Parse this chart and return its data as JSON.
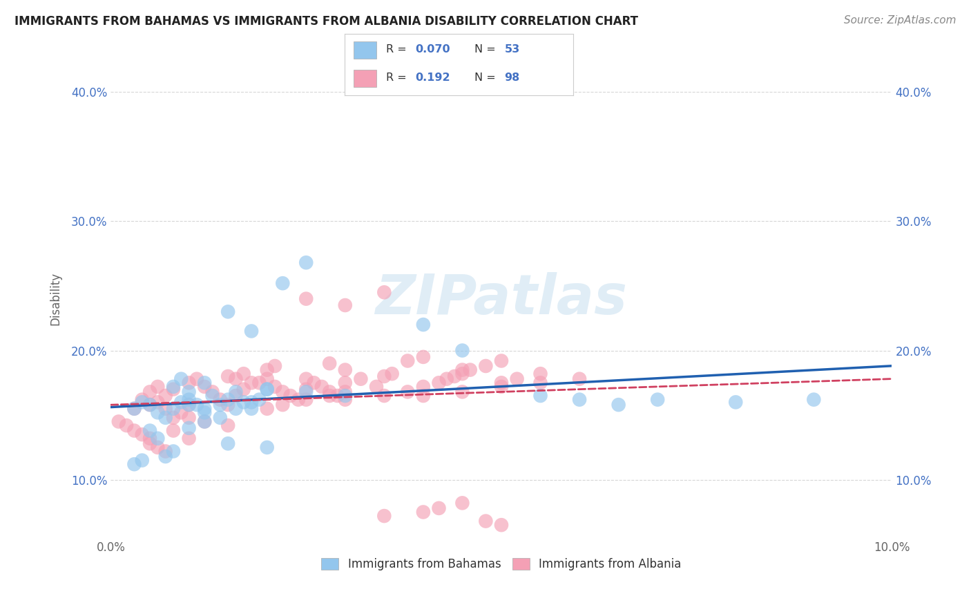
{
  "title": "IMMIGRANTS FROM BAHAMAS VS IMMIGRANTS FROM ALBANIA DISABILITY CORRELATION CHART",
  "source": "Source: ZipAtlas.com",
  "ylabel": "Disability",
  "xlim": [
    0.0,
    0.1
  ],
  "ylim": [
    0.055,
    0.425
  ],
  "y_ticks": [
    0.1,
    0.2,
    0.3,
    0.4
  ],
  "y_tick_labels": [
    "10.0%",
    "20.0%",
    "30.0%",
    "40.0%"
  ],
  "watermark": "ZIPatlas",
  "color_bahamas": "#93C6ED",
  "color_albania": "#F4A0B5",
  "color_line_bahamas": "#2060B0",
  "color_line_albania": "#D04060",
  "background_color": "#FFFFFF",
  "bahamas_x": [
    0.003,
    0.004,
    0.005,
    0.006,
    0.007,
    0.008,
    0.009,
    0.01,
    0.011,
    0.012,
    0.013,
    0.014,
    0.015,
    0.016,
    0.017,
    0.018,
    0.019,
    0.02,
    0.012,
    0.01,
    0.008,
    0.009,
    0.022,
    0.025,
    0.015,
    0.018,
    0.04,
    0.045,
    0.055,
    0.06,
    0.065,
    0.07,
    0.08,
    0.09,
    0.02,
    0.025,
    0.03,
    0.01,
    0.012,
    0.005,
    0.006,
    0.015,
    0.02,
    0.007,
    0.008,
    0.003,
    0.004,
    0.016,
    0.014,
    0.012,
    0.01,
    0.018
  ],
  "bahamas_y": [
    0.155,
    0.16,
    0.158,
    0.152,
    0.148,
    0.155,
    0.16,
    0.162,
    0.158,
    0.155,
    0.165,
    0.158,
    0.162,
    0.168,
    0.16,
    0.155,
    0.162,
    0.17,
    0.175,
    0.168,
    0.172,
    0.178,
    0.252,
    0.268,
    0.23,
    0.215,
    0.22,
    0.2,
    0.165,
    0.162,
    0.158,
    0.162,
    0.16,
    0.162,
    0.17,
    0.168,
    0.165,
    0.14,
    0.145,
    0.138,
    0.132,
    0.128,
    0.125,
    0.118,
    0.122,
    0.112,
    0.115,
    0.155,
    0.148,
    0.152,
    0.158,
    0.16
  ],
  "albania_x": [
    0.001,
    0.002,
    0.003,
    0.004,
    0.005,
    0.003,
    0.004,
    0.005,
    0.006,
    0.007,
    0.008,
    0.009,
    0.01,
    0.005,
    0.006,
    0.007,
    0.008,
    0.01,
    0.011,
    0.012,
    0.013,
    0.014,
    0.015,
    0.016,
    0.017,
    0.018,
    0.015,
    0.016,
    0.017,
    0.019,
    0.02,
    0.021,
    0.022,
    0.023,
    0.024,
    0.025,
    0.02,
    0.021,
    0.025,
    0.026,
    0.027,
    0.028,
    0.029,
    0.03,
    0.028,
    0.03,
    0.03,
    0.032,
    0.034,
    0.035,
    0.036,
    0.035,
    0.038,
    0.04,
    0.042,
    0.043,
    0.044,
    0.045,
    0.038,
    0.04,
    0.045,
    0.046,
    0.048,
    0.05,
    0.05,
    0.052,
    0.055,
    0.04,
    0.045,
    0.05,
    0.055,
    0.06,
    0.025,
    0.03,
    0.035,
    0.01,
    0.012,
    0.015,
    0.008,
    0.01,
    0.005,
    0.006,
    0.007,
    0.02,
    0.022,
    0.025,
    0.028,
    0.03,
    0.035,
    0.04,
    0.042,
    0.045,
    0.048,
    0.05
  ],
  "albania_y": [
    0.145,
    0.142,
    0.138,
    0.135,
    0.132,
    0.155,
    0.162,
    0.158,
    0.16,
    0.155,
    0.148,
    0.152,
    0.158,
    0.168,
    0.172,
    0.165,
    0.17,
    0.175,
    0.178,
    0.172,
    0.168,
    0.162,
    0.158,
    0.165,
    0.17,
    0.175,
    0.18,
    0.178,
    0.182,
    0.175,
    0.178,
    0.172,
    0.168,
    0.165,
    0.162,
    0.17,
    0.185,
    0.188,
    0.178,
    0.175,
    0.172,
    0.168,
    0.165,
    0.162,
    0.19,
    0.185,
    0.175,
    0.178,
    0.172,
    0.18,
    0.182,
    0.165,
    0.168,
    0.172,
    0.175,
    0.178,
    0.18,
    0.185,
    0.192,
    0.195,
    0.182,
    0.185,
    0.188,
    0.192,
    0.175,
    0.178,
    0.182,
    0.165,
    0.168,
    0.172,
    0.175,
    0.178,
    0.24,
    0.235,
    0.245,
    0.148,
    0.145,
    0.142,
    0.138,
    0.132,
    0.128,
    0.125,
    0.122,
    0.155,
    0.158,
    0.162,
    0.165,
    0.168,
    0.072,
    0.075,
    0.078,
    0.082,
    0.068,
    0.065
  ]
}
